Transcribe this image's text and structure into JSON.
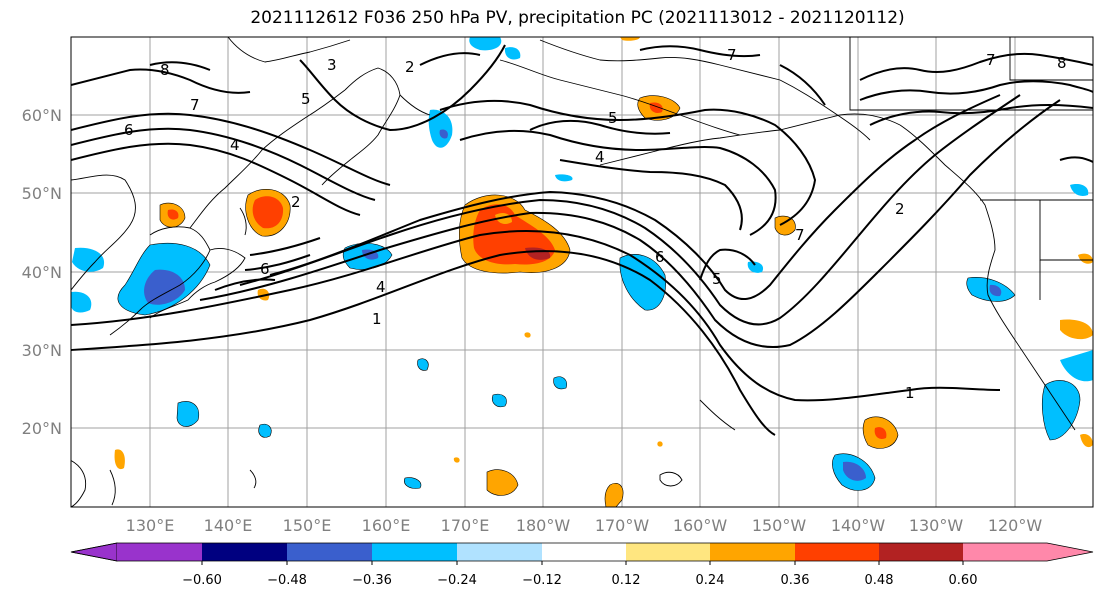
{
  "title": "2021112612 F036 250 hPa PV, precipitation PC (2021113012 - 2021120112)",
  "lat_labels": [
    "60°N",
    "50°N",
    "40°N",
    "30°N",
    "20°N"
  ],
  "lon_labels": [
    "130°E",
    "140°E",
    "150°E",
    "160°E",
    "170°E",
    "180°W",
    "170°W",
    "160°W",
    "150°W",
    "140°W",
    "130°W",
    "120°W"
  ],
  "colorbar": {
    "labels": [
      "−0.60",
      "−0.48",
      "−0.36",
      "−0.24",
      "−0.12",
      "0.12",
      "0.24",
      "0.36",
      "0.48",
      "0.60"
    ],
    "colors": [
      "#9933cc",
      "#000080",
      "#3a5fcd",
      "#00bfff",
      "#b0e2ff",
      "#ffffff",
      "#ffe680",
      "#ffa500",
      "#ff4000",
      "#b22222",
      "#ff88aa"
    ]
  },
  "contour_labels": [
    "1",
    "2",
    "3",
    "4",
    "5",
    "6",
    "7",
    "8"
  ],
  "colors": {
    "grid": "#a0a0a0",
    "contour": "#000000",
    "neg1": "#00bfff",
    "neg2": "#3a5fcd",
    "pos1": "#ffa500",
    "pos2": "#ff4000",
    "pos3": "#b22222"
  }
}
